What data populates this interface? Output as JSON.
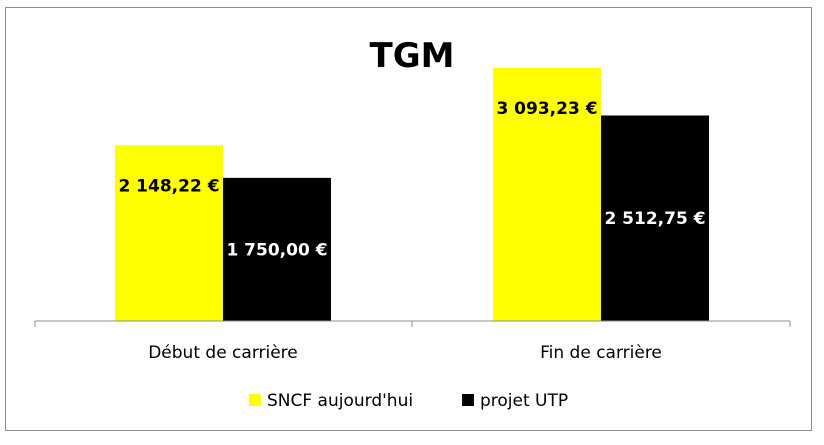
{
  "chart_data": {
    "type": "bar",
    "title": "TGM",
    "categories": [
      "Début de carrière",
      "Fin de carrière"
    ],
    "series": [
      {
        "name": "SNCF aujourd'hui",
        "color": "#ffff00",
        "values": [
          2148.22,
          3093.23
        ],
        "labels": [
          "2 148,22 €",
          "3 093,23 €"
        ],
        "label_color": "#000000"
      },
      {
        "name": "projet UTP",
        "color": "#000000",
        "values": [
          1750.0,
          2512.75
        ],
        "labels": [
          "1 750,00 €",
          "2 512,75 €"
        ],
        "label_color": "#ffffff"
      }
    ],
    "ylim": [
      0,
      3500
    ],
    "grid": false,
    "legend_position": "bottom"
  }
}
